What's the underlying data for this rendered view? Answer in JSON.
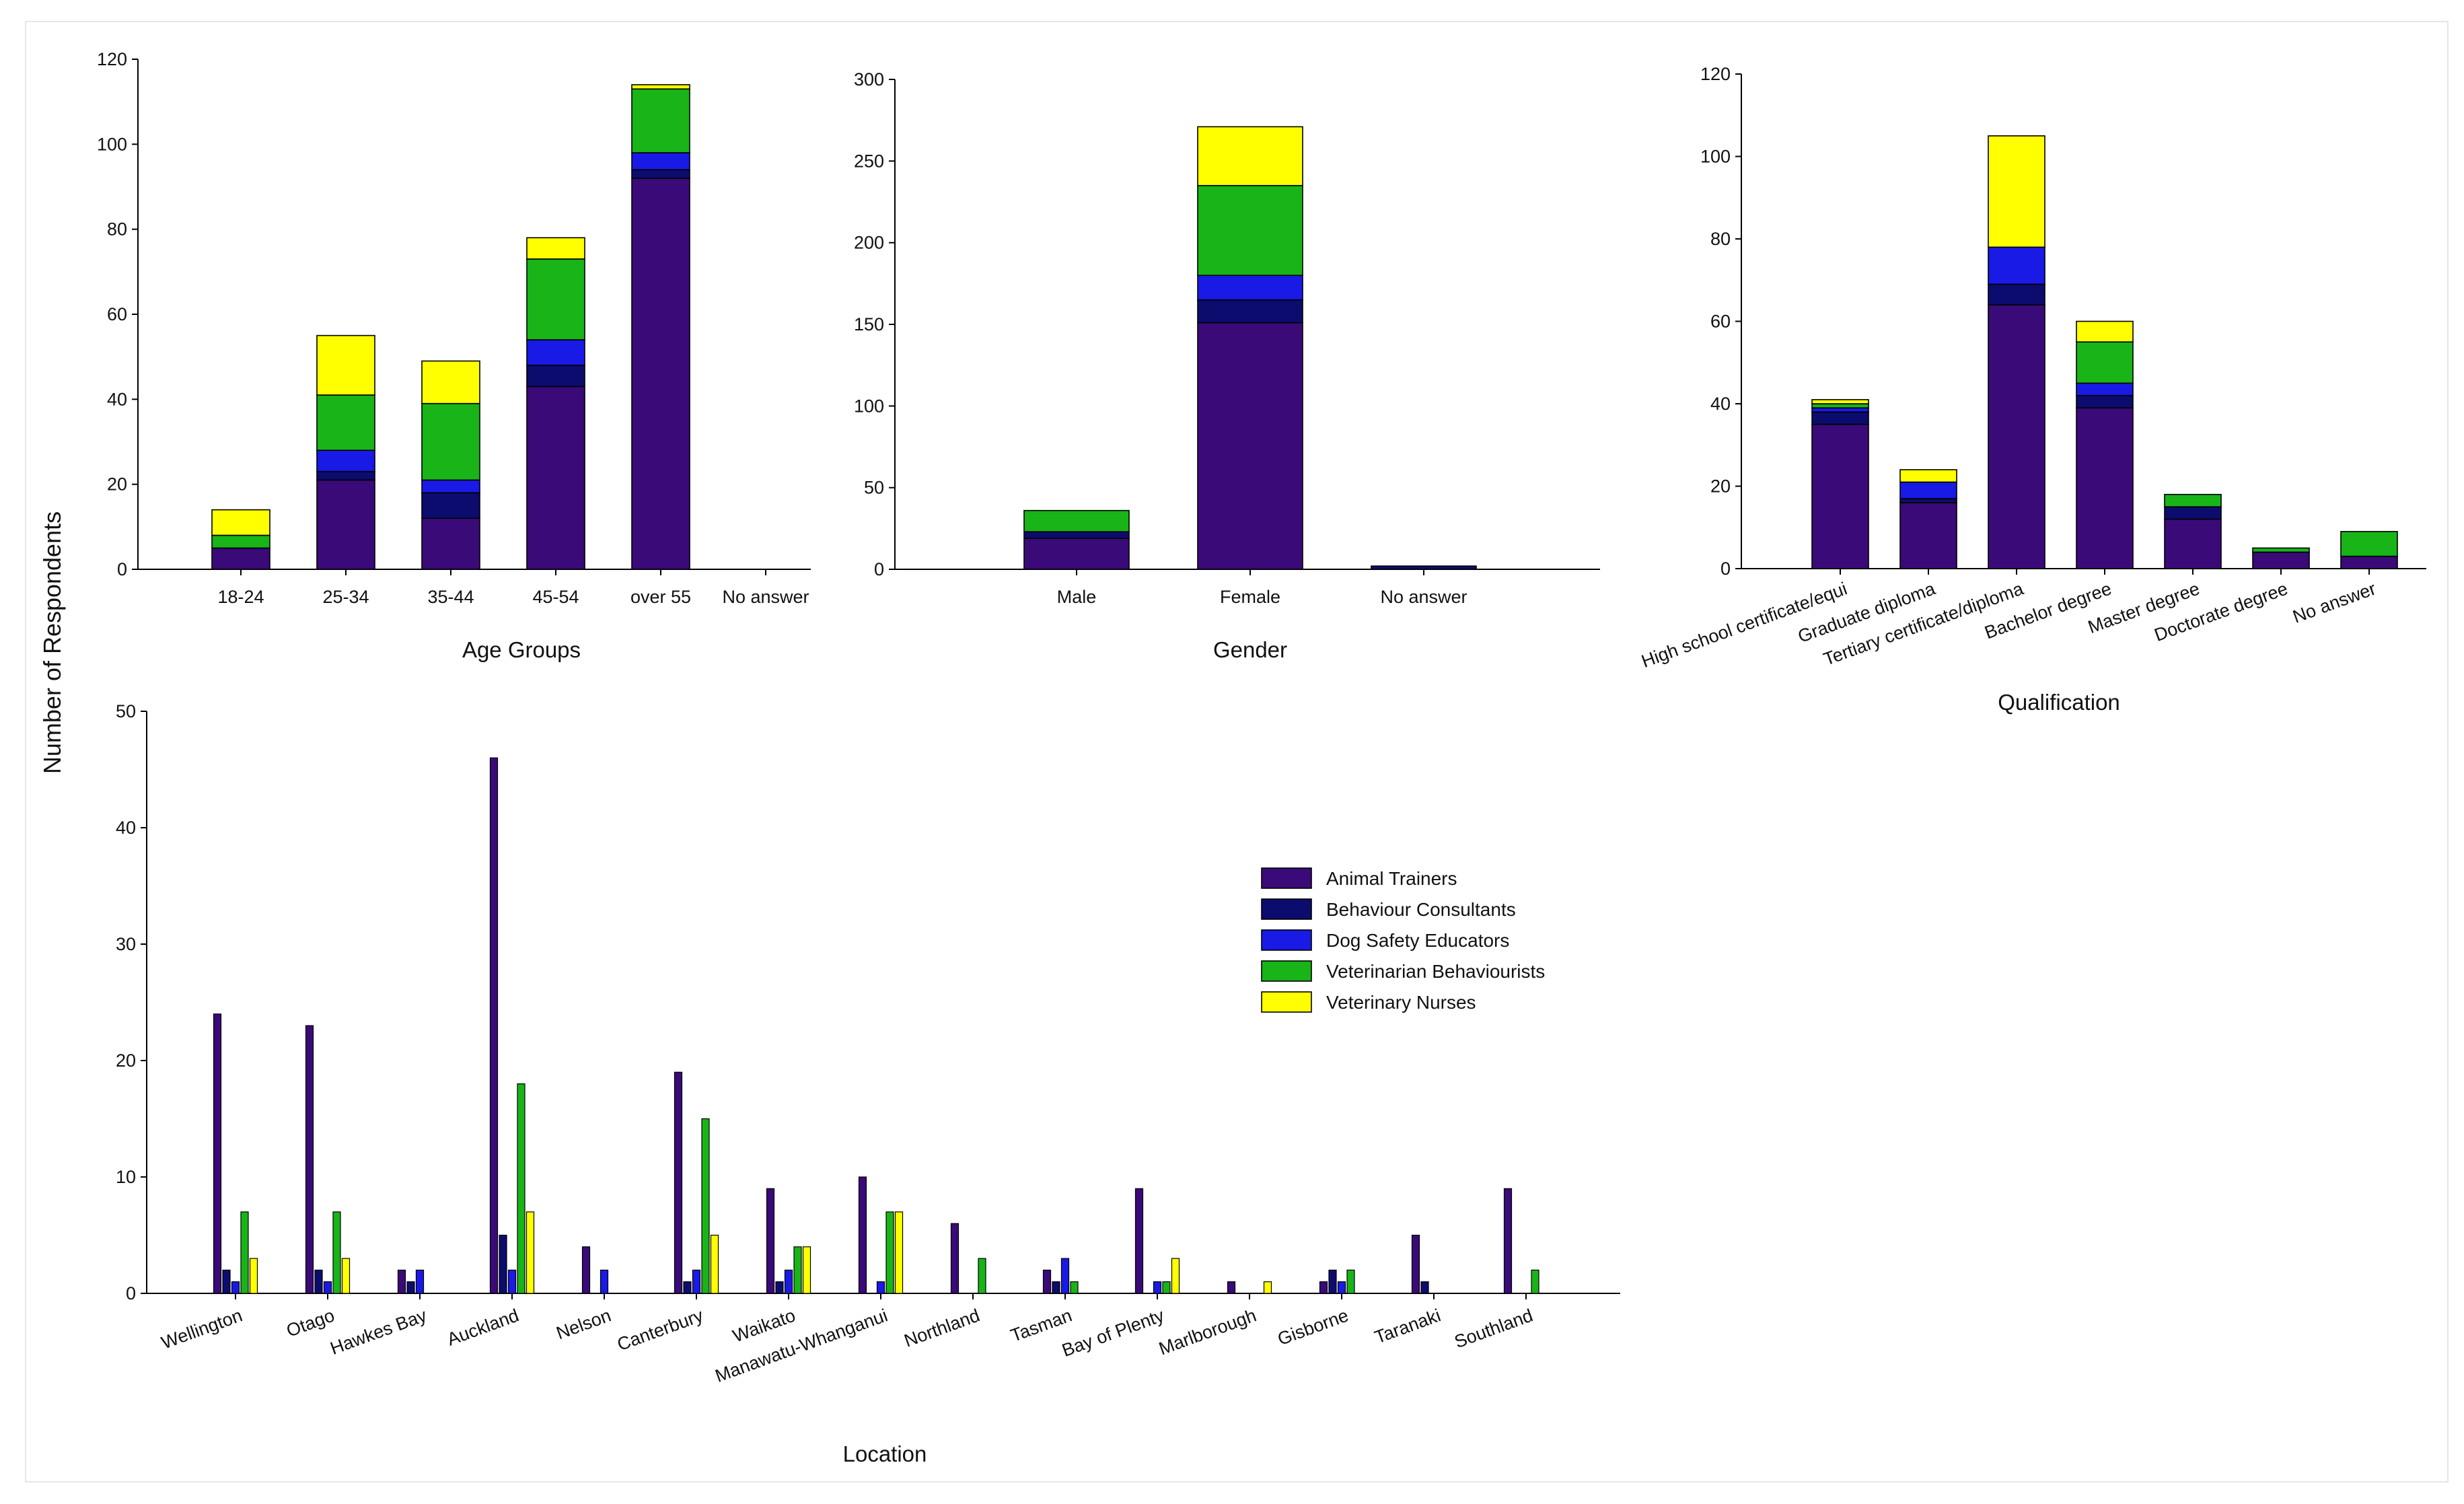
{
  "figure": {
    "shared_ylabel": "Number of Respondents",
    "series": [
      {
        "name": "Animal Trainers",
        "color": "#3a0a78"
      },
      {
        "name": "Behaviour Consultants",
        "color": "#0c0c6e"
      },
      {
        "name": "Dog Safety Educators",
        "color": "#1a1ae6"
      },
      {
        "name": "Veterinarian Behaviourists",
        "color": "#18b418"
      },
      {
        "name": "Veterinary Nurses",
        "color": "#ffff00"
      }
    ]
  },
  "chart_data": [
    {
      "id": "age",
      "type": "bar",
      "stacked": true,
      "title": "",
      "xlabel": "Age Groups",
      "ylabel": "Number of Respondents",
      "ylim": [
        0,
        120
      ],
      "yticks": [
        0,
        20,
        40,
        60,
        80,
        100,
        120
      ],
      "categories": [
        "18-24",
        "25-34",
        "35-44",
        "45-54",
        "over 55",
        "No answer"
      ],
      "series": [
        {
          "name": "Animal Trainers",
          "values": [
            5,
            21,
            12,
            43,
            92,
            0
          ]
        },
        {
          "name": "Behaviour Consultants",
          "values": [
            0,
            2,
            6,
            5,
            2,
            0
          ]
        },
        {
          "name": "Dog Safety Educators",
          "values": [
            0,
            5,
            3,
            6,
            4,
            0
          ]
        },
        {
          "name": "Veterinarian Behaviourists",
          "values": [
            3,
            13,
            18,
            19,
            15,
            0
          ]
        },
        {
          "name": "Veterinary Nurses",
          "values": [
            6,
            14,
            10,
            5,
            1,
            0
          ]
        }
      ]
    },
    {
      "id": "gender",
      "type": "bar",
      "stacked": true,
      "title": "",
      "xlabel": "Gender",
      "ylabel": "",
      "ylim": [
        0,
        300
      ],
      "yticks": [
        0,
        50,
        100,
        150,
        200,
        250,
        300
      ],
      "categories": [
        "Male",
        "Female",
        "No answer"
      ],
      "series": [
        {
          "name": "Animal Trainers",
          "values": [
            19,
            151,
            0
          ]
        },
        {
          "name": "Behaviour Consultants",
          "values": [
            4,
            14,
            2
          ]
        },
        {
          "name": "Dog Safety Educators",
          "values": [
            0,
            15,
            0
          ]
        },
        {
          "name": "Veterinarian Behaviourists",
          "values": [
            13,
            55,
            0
          ]
        },
        {
          "name": "Veterinary Nurses",
          "values": [
            0,
            36,
            0
          ]
        }
      ]
    },
    {
      "id": "qualification",
      "type": "bar",
      "stacked": true,
      "title": "",
      "xlabel": "Qualification",
      "ylabel": "",
      "ylim": [
        0,
        120
      ],
      "yticks": [
        0,
        20,
        40,
        60,
        80,
        100,
        120
      ],
      "categories": [
        "High school certificate/equi",
        "Graduate diploma",
        "Tertiary certificate/diploma",
        "Bachelor degree",
        "Master degree",
        "Doctorate degree",
        "No answer"
      ],
      "series": [
        {
          "name": "Animal Trainers",
          "values": [
            35,
            16,
            64,
            39,
            12,
            4,
            3
          ]
        },
        {
          "name": "Behaviour Consultants",
          "values": [
            3,
            1,
            5,
            3,
            3,
            0,
            0
          ]
        },
        {
          "name": "Dog Safety Educators",
          "values": [
            1,
            4,
            9,
            3,
            0,
            0,
            0
          ]
        },
        {
          "name": "Veterinarian Behaviourists",
          "values": [
            1,
            0,
            0,
            10,
            3,
            1,
            6
          ]
        },
        {
          "name": "Veterinary Nurses",
          "values": [
            1,
            3,
            27,
            5,
            0,
            0,
            0
          ]
        }
      ]
    },
    {
      "id": "location",
      "type": "bar",
      "stacked": false,
      "title": "",
      "xlabel": "Location",
      "ylabel": "",
      "ylim": [
        0,
        50
      ],
      "yticks": [
        0,
        10,
        20,
        30,
        40,
        50
      ],
      "legend": "upper-right",
      "categories": [
        "Wellington",
        "Otago",
        "Hawkes Bay",
        "Auckland",
        "Nelson",
        "Canterbury",
        "Waikato",
        "Manawatu-Whanganui",
        "Northland",
        "Tasman",
        "Bay of Plenty",
        "Marlborough",
        "Gisborne",
        "Taranaki",
        "Southland"
      ],
      "series": [
        {
          "name": "Animal Trainers",
          "values": [
            24,
            23,
            2,
            46,
            4,
            19,
            9,
            10,
            6,
            2,
            9,
            1,
            1,
            5,
            9
          ]
        },
        {
          "name": "Behaviour Consultants",
          "values": [
            2,
            2,
            1,
            5,
            0,
            1,
            1,
            0,
            0,
            1,
            0,
            0,
            2,
            1,
            0
          ]
        },
        {
          "name": "Dog Safety Educators",
          "values": [
            1,
            1,
            2,
            2,
            2,
            2,
            2,
            1,
            0,
            3,
            1,
            0,
            1,
            0,
            0
          ]
        },
        {
          "name": "Veterinarian Behaviourists",
          "values": [
            7,
            7,
            0,
            18,
            0,
            15,
            4,
            7,
            3,
            1,
            1,
            0,
            2,
            0,
            2
          ]
        },
        {
          "name": "Veterinary Nurses",
          "values": [
            3,
            3,
            0,
            7,
            0,
            5,
            4,
            7,
            0,
            0,
            3,
            1,
            0,
            0,
            0
          ]
        }
      ]
    }
  ]
}
